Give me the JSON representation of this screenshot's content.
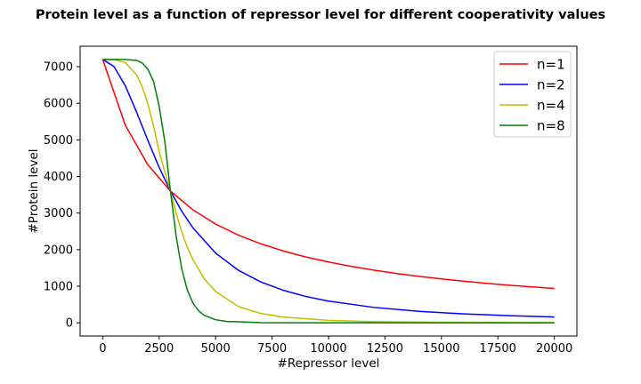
{
  "chart_data": {
    "type": "line",
    "title": "Protein level as a function of repressor level for different cooperativity values",
    "xlabel": "#Repressor level",
    "ylabel": "#Protein level",
    "xlim": [
      -1000,
      21000
    ],
    "ylim": [
      -360,
      7560
    ],
    "xticks": [
      "0",
      "2500",
      "5000",
      "7500",
      "10000",
      "12500",
      "15000",
      "17500",
      "20000"
    ],
    "yticks": [
      "0",
      "1000",
      "2000",
      "3000",
      "4000",
      "5000",
      "6000",
      "7000"
    ],
    "grid": false,
    "legend_position": "top-right",
    "series": [
      {
        "name": "n=1",
        "color": "#ff0000",
        "x": [
          0,
          1000,
          2000,
          3000,
          4000,
          5000,
          6000,
          7000,
          8000,
          9000,
          10000,
          11000,
          12000,
          13000,
          14000,
          15000,
          16000,
          17000,
          18000,
          19000,
          20000
        ],
        "values": [
          7200,
          5400,
          4320,
          3600,
          3086,
          2700,
          2400,
          2160,
          1964,
          1800,
          1662,
          1543,
          1440,
          1350,
          1271,
          1200,
          1137,
          1080,
          1029,
          982,
          939
        ]
      },
      {
        "name": "n=2",
        "color": "#0000ff",
        "x": [
          0,
          500,
          1000,
          1500,
          2000,
          2500,
          3000,
          3500,
          4000,
          5000,
          6000,
          7000,
          8000,
          9000,
          10000,
          12000,
          14000,
          16000,
          18000,
          20000
        ],
        "values": [
          7200,
          7005,
          6480,
          5760,
          4985,
          4249,
          3600,
          3050,
          2592,
          1906,
          1440,
          1118,
          889,
          720,
          594,
          422,
          315,
          244,
          195,
          159
        ]
      },
      {
        "name": "n=4",
        "color": "#bfbf00",
        "x": [
          0,
          500,
          1000,
          1500,
          1750,
          2000,
          2250,
          2500,
          2750,
          3000,
          3250,
          3500,
          3750,
          4000,
          4500,
          5000,
          6000,
          7000,
          8000,
          10000,
          12000,
          15000,
          20000
        ],
        "values": [
          7200,
          7194,
          7112,
          6776,
          6451,
          5988,
          5387,
          4677,
          4128,
          3600,
          3003,
          2485,
          2057,
          1721,
          1199,
          856,
          450,
          256,
          156,
          67,
          33,
          14,
          4
        ]
      },
      {
        "name": "n=8",
        "color": "#008000",
        "x": [
          0,
          1000,
          1500,
          1750,
          2000,
          2250,
          2500,
          2750,
          3000,
          3250,
          3500,
          3750,
          4000,
          4250,
          4500,
          5000,
          5500,
          6000,
          7000,
          8000,
          10000,
          20000
        ],
        "values": [
          7200,
          7199,
          7172,
          7102,
          6930,
          6601,
          5921,
          4960,
          3600,
          2378,
          1474,
          889,
          534,
          326,
          203,
          85,
          38,
          28,
          4,
          1,
          0,
          0
        ]
      }
    ]
  }
}
